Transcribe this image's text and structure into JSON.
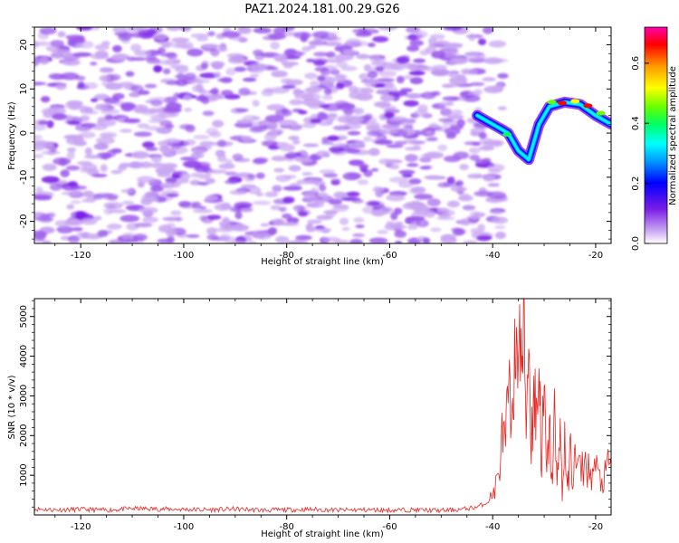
{
  "title": "PAZ1.2024.181.00.29.G26",
  "chart_data": [
    {
      "type": "heatmap",
      "xlabel": "Height of straight line (km)",
      "ylabel": "Frequency (Hz)",
      "xlim": [
        -129,
        -17
      ],
      "ylim": [
        -25,
        24
      ],
      "xticks": [
        -120,
        -100,
        -80,
        -60,
        -40,
        -20
      ],
      "yticks": [
        -20,
        -10,
        0,
        10,
        20
      ],
      "colorbar": {
        "label": "Normalized spectral amplitude",
        "range": [
          0,
          0.72
        ],
        "ticks": [
          0.0,
          0.2,
          0.4,
          0.6
        ],
        "colormap": "gist_ncar_r",
        "colors": [
          "#ffffff",
          "#c9a6f2",
          "#7a1ce8",
          "#0000ff",
          "#00ffff",
          "#00ff66",
          "#66ff00",
          "#ffff00",
          "#ff9900",
          "#ff0000",
          "#ff00aa"
        ]
      },
      "features": [
        {
          "name": "noise-band",
          "x_range": [
            -129,
            -40
          ],
          "y_range": [
            -25,
            24
          ],
          "amplitude": 0.08
        },
        {
          "name": "signal-trace",
          "points": [
            [
              -43,
              4
            ],
            [
              -40,
              2
            ],
            [
              -37,
              0
            ],
            [
              -35,
              -4
            ],
            [
              -33,
              -6
            ],
            [
              -31,
              2
            ],
            [
              -29,
              6
            ],
            [
              -26,
              7
            ],
            [
              -23,
              6.5
            ],
            [
              -20,
              4
            ],
            [
              -17,
              2
            ]
          ],
          "peak_amplitude": 0.72
        }
      ]
    },
    {
      "type": "line",
      "xlabel": "Height of straight line (km)",
      "ylabel": "SNR (10 * v/v)",
      "xlim": [
        -129,
        -17
      ],
      "ylim": [
        0,
        5450
      ],
      "xticks": [
        -120,
        -100,
        -80,
        -60,
        -40,
        -20
      ],
      "yticks": [
        1000,
        2000,
        3000,
        4000,
        5000
      ],
      "color": "#e8231f",
      "series": [
        {
          "x": [
            -129,
            -125,
            -120,
            -115,
            -110,
            -105,
            -100,
            -95,
            -90,
            -85,
            -80,
            -75,
            -70,
            -65,
            -60,
            -55,
            -50,
            -46,
            -43,
            -41,
            -40,
            -39,
            -38,
            -37.5,
            -37,
            -36.5,
            -36,
            -35.5,
            -35,
            -34.5,
            -34,
            -33.5,
            -33,
            -32.5,
            -32,
            -31.5,
            -31,
            -30.5,
            -30,
            -29.5,
            -29,
            -28.5,
            -28,
            -27.5,
            -27,
            -26.5,
            -26,
            -25.5,
            -25,
            -24.5,
            -24,
            -23,
            -22,
            -21,
            -20,
            -19,
            -18,
            -17
          ],
          "y": [
            150,
            130,
            140,
            120,
            160,
            150,
            140,
            130,
            150,
            120,
            130,
            140,
            120,
            130,
            120,
            130,
            110,
            140,
            200,
            320,
            500,
            900,
            2100,
            1500,
            3200,
            2300,
            4300,
            2800,
            5450,
            3500,
            4800,
            2500,
            4600,
            1800,
            3300,
            2400,
            3900,
            1300,
            3000,
            900,
            2200,
            800,
            2500,
            600,
            2700,
            400,
            2000,
            500,
            1700,
            900,
            1400,
            1100,
            1300,
            1000,
            1200,
            800,
            1000,
            1450
          ]
        }
      ]
    }
  ]
}
